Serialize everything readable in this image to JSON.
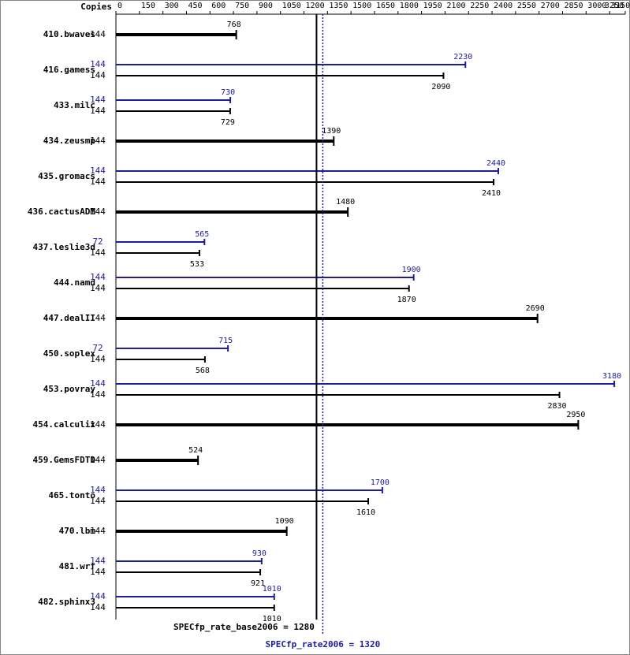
{
  "chart_data": {
    "type": "bar",
    "orientation": "horizontal",
    "copies_header": "Copies",
    "categories": [
      "410.bwaves",
      "416.gamess",
      "433.milc",
      "434.zeusmp",
      "435.gromacs",
      "436.cactusADM",
      "437.leslie3d",
      "444.namd",
      "447.dealII",
      "450.soplex",
      "453.povray",
      "454.calculix",
      "459.GemsFDTD",
      "465.tonto",
      "470.lbm",
      "481.wrf",
      "482.sphinx3"
    ],
    "series": [
      {
        "color": "#000000",
        "copies": [
          144,
          144,
          144,
          144,
          144,
          144,
          144,
          144,
          144,
          144,
          144,
          144,
          144,
          144,
          144,
          144,
          144
        ],
        "values": [
          768,
          2090,
          729,
          1390,
          2410,
          1480,
          533,
          1870,
          2690,
          568,
          2830,
          2950,
          524,
          1610,
          1090,
          921,
          1010
        ]
      },
      {
        "color": "#1c1c9c",
        "copies": [
          null,
          144,
          144,
          null,
          144,
          null,
          72,
          144,
          null,
          72,
          144,
          null,
          null,
          144,
          null,
          144,
          144
        ],
        "values": [
          null,
          2230,
          730,
          null,
          2440,
          null,
          565,
          1900,
          null,
          715,
          3180,
          null,
          null,
          1700,
          null,
          930,
          1010
        ]
      }
    ],
    "xlim": [
      0,
      3250
    ],
    "xticks": [
      0,
      150,
      300,
      450,
      600,
      750,
      900,
      1050,
      1200,
      1350,
      1500,
      1650,
      1800,
      1950,
      2100,
      2250,
      2400,
      2550,
      2700,
      2850,
      3000,
      3150,
      3250
    ],
    "reference_lines": [
      {
        "value": 1280,
        "label": "SPECfp_rate_base2006 = 1280",
        "color": "#000000"
      },
      {
        "value": 1320,
        "label": "SPECfp_rate2006 = 1320",
        "color": "#1c1c9c"
      }
    ]
  }
}
